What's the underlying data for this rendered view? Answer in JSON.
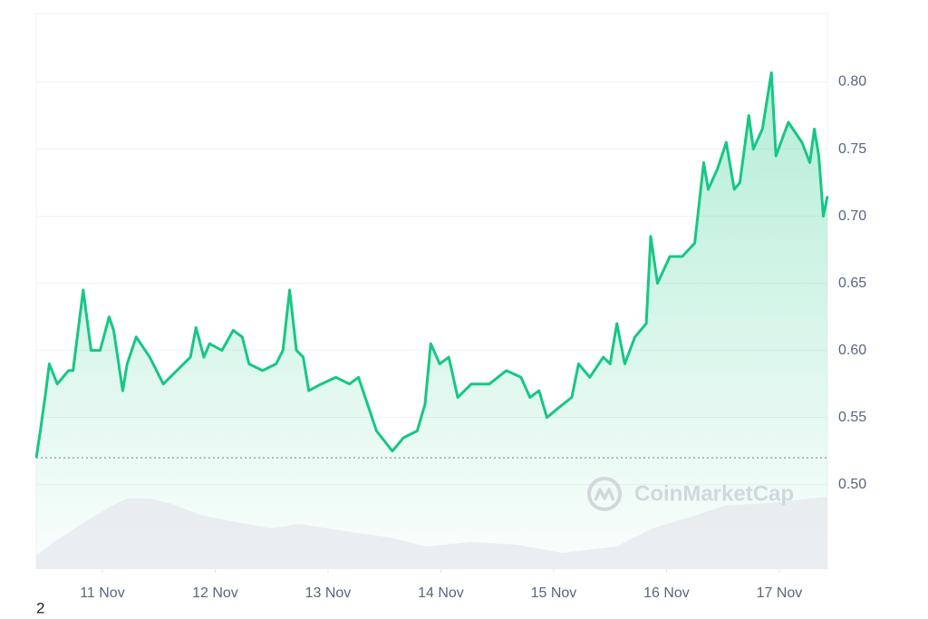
{
  "chart_data": {
    "type": "line",
    "xlim": [
      10.414,
      17.426
    ],
    "ylim": [
      0.437,
      0.851
    ],
    "y2lim": [
      0,
      100
    ],
    "xticks": [
      {
        "value": 11,
        "label": "11 Nov"
      },
      {
        "value": 12,
        "label": "12 Nov"
      },
      {
        "value": 13,
        "label": "13 Nov"
      },
      {
        "value": 14,
        "label": "14 Nov"
      },
      {
        "value": 15,
        "label": "15 Nov"
      },
      {
        "value": 16,
        "label": "16 Nov"
      },
      {
        "value": 17,
        "label": "17 Nov"
      }
    ],
    "yticks": [
      {
        "value": 0.5,
        "label": "0.50"
      },
      0.55,
      {
        "value": 0.6,
        "label": "0.60"
      },
      0.65,
      {
        "value": 0.7,
        "label": "0.70"
      },
      0.75,
      {
        "value": 0.8,
        "label": "0.80"
      }
    ],
    "grid": true,
    "baseline": 0.52,
    "series": [
      {
        "color": "#16c784",
        "x": [
          10.414,
          10.45,
          10.5,
          10.53,
          10.6,
          10.7,
          10.74,
          10.83,
          10.9,
          10.98,
          11.06,
          11.1,
          11.18,
          11.22,
          11.3,
          11.42,
          11.54,
          11.66,
          11.78,
          11.83,
          11.9,
          11.95,
          12.06,
          12.16,
          12.24,
          12.3,
          12.42,
          12.54,
          12.6,
          12.66,
          12.72,
          12.78,
          12.83,
          12.94,
          13.07,
          13.19,
          13.27,
          13.35,
          13.43,
          13.57,
          13.67,
          13.79,
          13.86,
          13.91,
          13.99,
          14.07,
          14.15,
          14.27,
          14.43,
          14.58,
          14.71,
          14.79,
          14.87,
          14.94,
          15.04,
          15.16,
          15.22,
          15.32,
          15.44,
          15.5,
          15.56,
          15.63,
          15.72,
          15.82,
          15.86,
          15.92,
          16.03,
          16.14,
          16.25,
          16.33,
          16.37,
          16.45,
          16.53,
          16.6,
          16.65,
          16.73,
          16.77,
          16.85,
          16.93,
          16.97,
          17.08,
          17.2,
          17.27,
          17.31,
          17.35,
          17.39,
          17.426
        ],
        "values": [
          0.52,
          0.54,
          0.57,
          0.59,
          0.575,
          0.585,
          0.585,
          0.645,
          0.6,
          0.6,
          0.625,
          0.615,
          0.57,
          0.59,
          0.61,
          0.595,
          0.575,
          0.585,
          0.595,
          0.617,
          0.595,
          0.605,
          0.6,
          0.615,
          0.61,
          0.59,
          0.585,
          0.59,
          0.6,
          0.645,
          0.6,
          0.595,
          0.57,
          0.575,
          0.58,
          0.575,
          0.58,
          0.56,
          0.54,
          0.525,
          0.535,
          0.54,
          0.56,
          0.605,
          0.59,
          0.595,
          0.565,
          0.575,
          0.575,
          0.585,
          0.58,
          0.565,
          0.57,
          0.55,
          0.557,
          0.565,
          0.59,
          0.58,
          0.595,
          0.59,
          0.62,
          0.59,
          0.61,
          0.62,
          0.685,
          0.65,
          0.67,
          0.67,
          0.68,
          0.74,
          0.72,
          0.735,
          0.755,
          0.72,
          0.725,
          0.775,
          0.75,
          0.765,
          0.807,
          0.745,
          0.77,
          0.755,
          0.74,
          0.765,
          0.745,
          0.7,
          0.715
        ]
      },
      {
        "color": "#e8eaee",
        "axis": "y2",
        "x": [
          10.414,
          10.575,
          10.816,
          11.057,
          11.217,
          11.418,
          11.619,
          11.86,
          12.181,
          12.502,
          12.743,
          13.145,
          13.546,
          13.868,
          14.269,
          14.671,
          15.073,
          15.555,
          15.876,
          16.197,
          16.518,
          17.0,
          17.426
        ],
        "values": [
          15,
          30,
          50,
          68,
          78,
          78,
          72,
          60,
          52,
          45,
          50,
          42,
          35,
          25,
          30,
          27,
          18,
          25,
          45,
          57,
          70,
          74,
          80
        ]
      }
    ],
    "watermark": "CoinMarketCap",
    "note": "2"
  }
}
